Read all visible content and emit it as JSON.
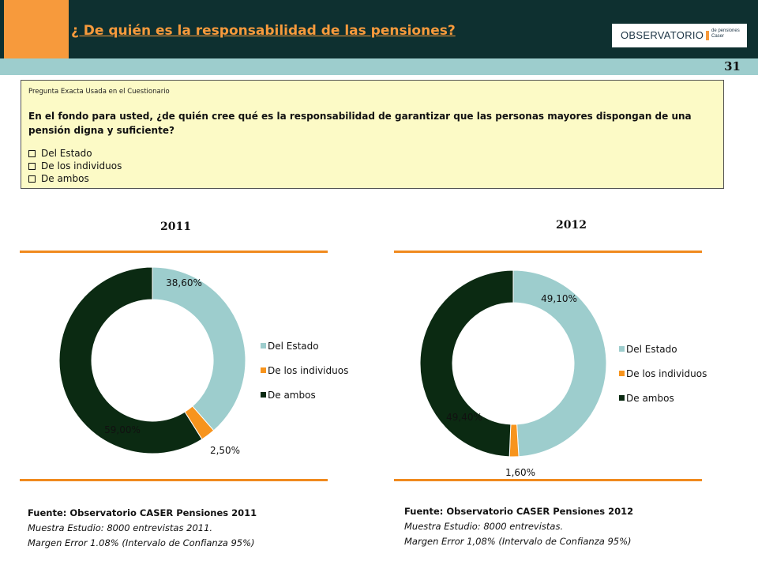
{
  "header": {
    "title": "¿ De quién es la responsabilidad de las pensiones?",
    "logo_main": "OBSERVATORIO",
    "logo_sub_line1": "de pensiones",
    "logo_sub_line2": "Caser",
    "page_number": "31"
  },
  "question": {
    "label": "Pregunta Exacta Usada en el Cuestionario",
    "text": "En el fondo para usted, ¿de quién cree qué es la responsabilidad de garantizar que las personas mayores dispongan de una pensión digna y suficiente?",
    "options": [
      "Del Estado",
      "De los individuos",
      "De ambos"
    ]
  },
  "colors": {
    "estado": "#9dcdcd",
    "individuos": "#f7941d",
    "ambos": "#0b2a12",
    "accent": "#f08a1e"
  },
  "chart_data": [
    {
      "type": "pie",
      "title": "2011",
      "categories": [
        "Del Estado",
        "De los individuos",
        "De ambos"
      ],
      "values": [
        38.6,
        2.5,
        59.0
      ],
      "data_labels": [
        "38,60%",
        "2,50%",
        "59,00%"
      ],
      "legend_placement": "right"
    },
    {
      "type": "pie",
      "title": "2012",
      "categories": [
        "Del Estado",
        "De los individuos",
        "De ambos"
      ],
      "values": [
        49.1,
        1.6,
        49.4
      ],
      "data_labels": [
        "49,10%",
        "1,60%",
        "49,40%"
      ],
      "legend_placement": "right"
    }
  ],
  "sources": [
    {
      "title": "Fuente: Observatorio CASER Pensiones 2011",
      "line1": "Muestra Estudio: 8000 entrevistas 2011.",
      "line2": "Margen Error 1.08% (Intervalo de Confianza 95%)"
    },
    {
      "title": "Fuente: Observatorio CASER Pensiones 2012",
      "line1": "Muestra Estudio: 8000 entrevistas.",
      "line2": "Margen Error 1,08% (Intervalo de Confianza 95%)"
    }
  ]
}
